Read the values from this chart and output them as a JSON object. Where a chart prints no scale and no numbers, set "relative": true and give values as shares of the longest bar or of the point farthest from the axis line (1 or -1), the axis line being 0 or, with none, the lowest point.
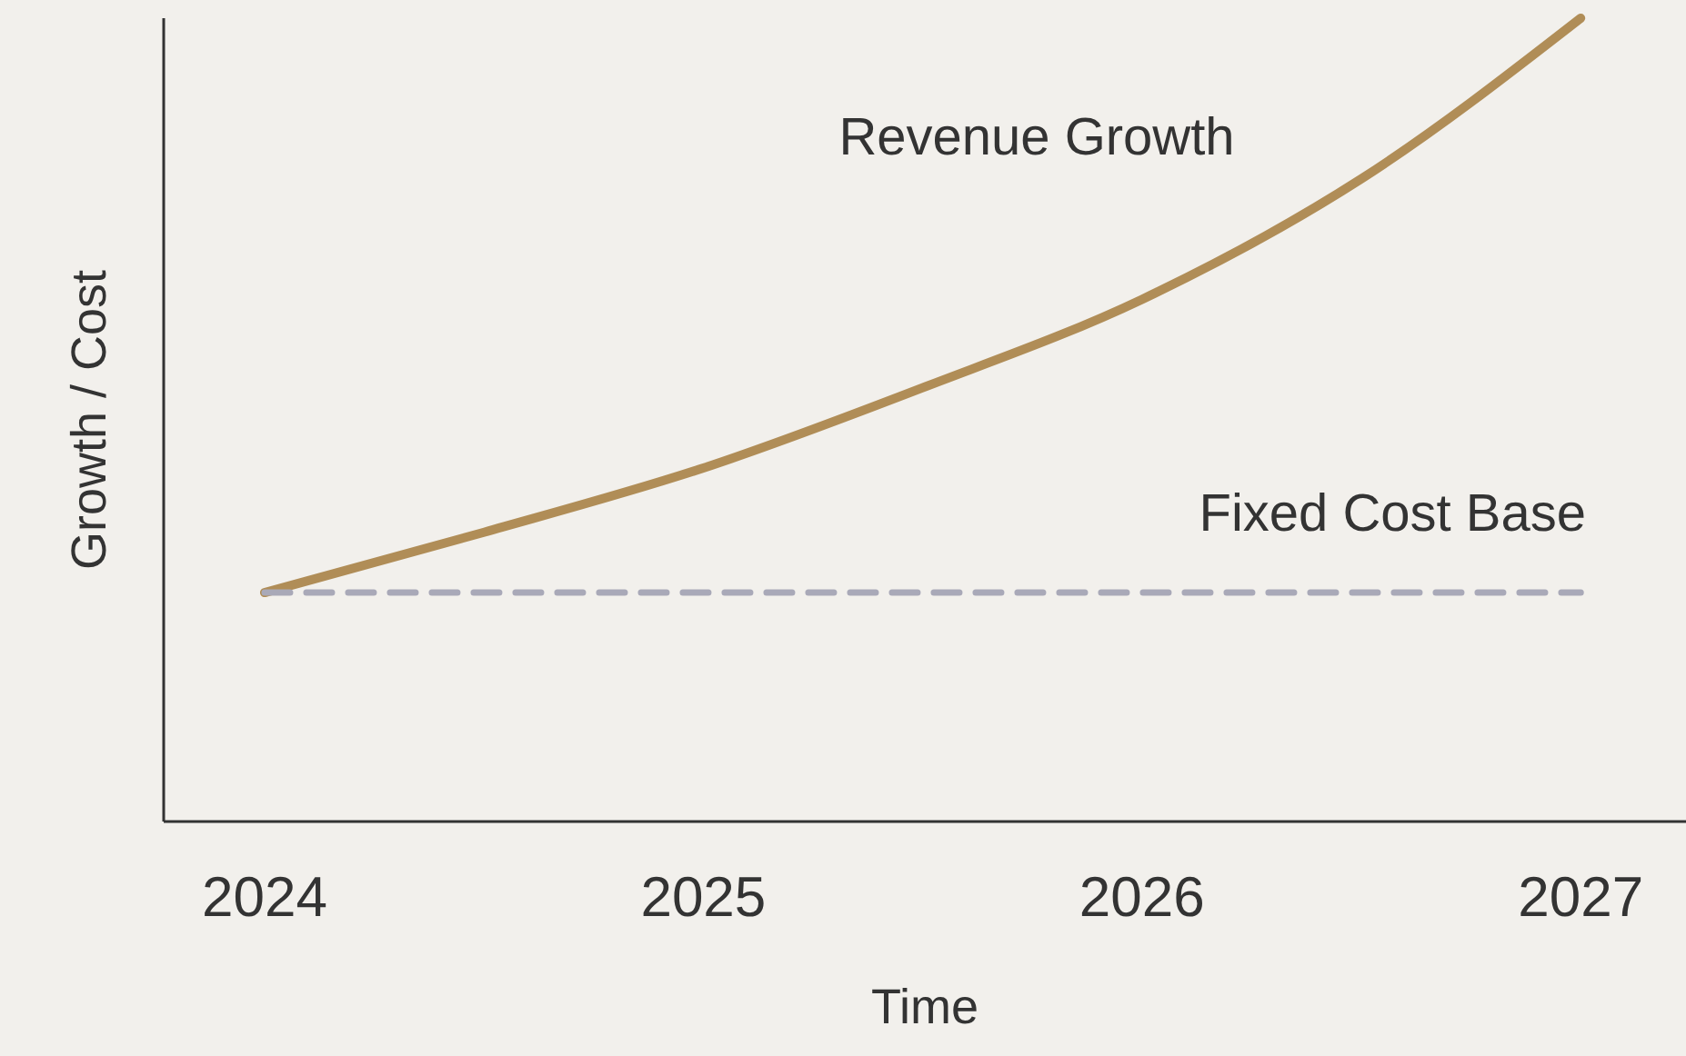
{
  "chart_data": {
    "type": "line",
    "xlabel": "Time",
    "ylabel": "Growth / Cost",
    "relative": true,
    "x": [
      2024,
      2024.5,
      2025,
      2025.5,
      2026,
      2026.5,
      2027
    ],
    "xlim": [
      2023.77,
      2027.24
    ],
    "xticks": [
      2024,
      2025,
      2026,
      2027
    ],
    "grid": false,
    "marker": "none",
    "series": [
      {
        "name": "Revenue Growth",
        "color": "#b08d57",
        "line_style": "solid",
        "values": [
          0.285,
          0.36,
          0.44,
          0.54,
          0.65,
          0.8,
          1.0
        ]
      },
      {
        "name": "Fixed Cost Base",
        "color": "#a9a9b8",
        "line_style": "dashed",
        "values": [
          0.285,
          0.285,
          0.285,
          0.285,
          0.285,
          0.285,
          0.285
        ]
      }
    ]
  }
}
